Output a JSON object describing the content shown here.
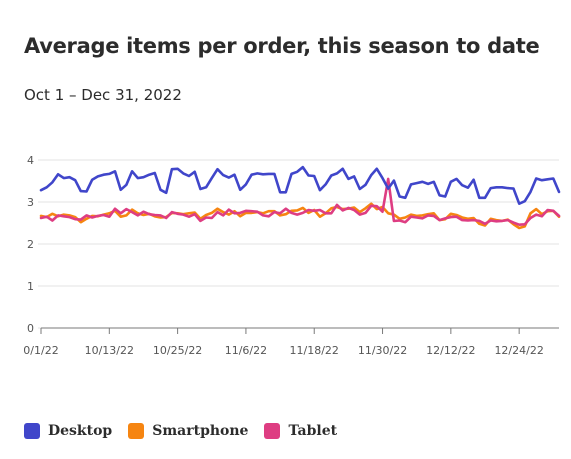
{
  "chart_data": {
    "type": "line",
    "title": "Average items per order, this season to date",
    "subtitle": "Oct 1 – Dec 31, 2022",
    "xlabel": "",
    "ylabel": "",
    "x_start": "2022-10-01",
    "x_end": "2022-12-31",
    "ylim": [
      0,
      4
    ],
    "yticks": [
      0,
      1,
      2,
      3,
      4
    ],
    "ytick_labels": [
      "0",
      "1",
      "2",
      "3",
      "4"
    ],
    "xticks": [
      "2022-10-01",
      "2022-10-13",
      "2022-10-25",
      "2022-11-06",
      "2022-11-18",
      "2022-11-30",
      "2022-12-12",
      "2022-12-24"
    ],
    "xtick_labels": [
      "0/1/22",
      "10/13/22",
      "10/25/22",
      "11/6/22",
      "11/18/22",
      "11/30/22",
      "12/12/22",
      "12/24/22"
    ],
    "grid": true,
    "legend_position": "bottom-left",
    "series": [
      {
        "name": "Desktop",
        "color": "#4046ca",
        "values": [
          3.28,
          3.35,
          3.47,
          3.66,
          3.57,
          3.59,
          3.52,
          3.26,
          3.25,
          3.53,
          3.61,
          3.65,
          3.67,
          3.73,
          3.29,
          3.41,
          3.73,
          3.57,
          3.59,
          3.65,
          3.69,
          3.29,
          3.22,
          3.78,
          3.79,
          3.68,
          3.62,
          3.72,
          3.31,
          3.35,
          3.57,
          3.78,
          3.64,
          3.58,
          3.65,
          3.29,
          3.42,
          3.65,
          3.68,
          3.66,
          3.67,
          3.67,
          3.23,
          3.23,
          3.67,
          3.72,
          3.83,
          3.63,
          3.62,
          3.28,
          3.42,
          3.63,
          3.68,
          3.79,
          3.55,
          3.61,
          3.31,
          3.41,
          3.64,
          3.79,
          3.57,
          3.32,
          3.51,
          3.13,
          3.1,
          3.42,
          3.45,
          3.48,
          3.43,
          3.48,
          3.16,
          3.13,
          3.48,
          3.55,
          3.4,
          3.34,
          3.53,
          3.1,
          3.1,
          3.33,
          3.35,
          3.35,
          3.33,
          3.32,
          2.96,
          3.02,
          3.24,
          3.56,
          3.52,
          3.54,
          3.56,
          3.24
        ]
      },
      {
        "name": "Smartphone",
        "color": "#f68511",
        "values": [
          2.67,
          2.64,
          2.72,
          2.66,
          2.7,
          2.68,
          2.64,
          2.52,
          2.6,
          2.67,
          2.66,
          2.7,
          2.73,
          2.79,
          2.65,
          2.68,
          2.82,
          2.73,
          2.69,
          2.72,
          2.66,
          2.63,
          2.64,
          2.74,
          2.73,
          2.71,
          2.73,
          2.75,
          2.6,
          2.69,
          2.74,
          2.84,
          2.76,
          2.7,
          2.78,
          2.66,
          2.74,
          2.74,
          2.76,
          2.73,
          2.78,
          2.78,
          2.68,
          2.71,
          2.79,
          2.8,
          2.86,
          2.74,
          2.81,
          2.65,
          2.73,
          2.85,
          2.88,
          2.83,
          2.84,
          2.87,
          2.76,
          2.85,
          2.96,
          2.83,
          2.88,
          2.73,
          2.7,
          2.6,
          2.63,
          2.7,
          2.67,
          2.68,
          2.71,
          2.73,
          2.57,
          2.59,
          2.72,
          2.69,
          2.63,
          2.6,
          2.62,
          2.48,
          2.44,
          2.6,
          2.57,
          2.55,
          2.58,
          2.47,
          2.38,
          2.42,
          2.73,
          2.83,
          2.71,
          2.78,
          2.79,
          2.65
        ]
      },
      {
        "name": "Tablet",
        "color": "#de3d82",
        "values": [
          2.62,
          2.65,
          2.56,
          2.68,
          2.66,
          2.64,
          2.59,
          2.58,
          2.68,
          2.63,
          2.67,
          2.69,
          2.65,
          2.84,
          2.73,
          2.83,
          2.76,
          2.68,
          2.77,
          2.71,
          2.69,
          2.68,
          2.62,
          2.76,
          2.72,
          2.7,
          2.65,
          2.71,
          2.55,
          2.63,
          2.62,
          2.76,
          2.68,
          2.82,
          2.73,
          2.74,
          2.79,
          2.78,
          2.77,
          2.68,
          2.66,
          2.76,
          2.73,
          2.84,
          2.74,
          2.7,
          2.74,
          2.81,
          2.79,
          2.81,
          2.73,
          2.73,
          2.93,
          2.8,
          2.86,
          2.81,
          2.7,
          2.74,
          2.91,
          2.9,
          2.77,
          3.55,
          2.55,
          2.56,
          2.52,
          2.65,
          2.63,
          2.61,
          2.68,
          2.67,
          2.57,
          2.61,
          2.64,
          2.65,
          2.57,
          2.56,
          2.57,
          2.55,
          2.48,
          2.56,
          2.54,
          2.55,
          2.57,
          2.51,
          2.46,
          2.47,
          2.62,
          2.7,
          2.66,
          2.81,
          2.79,
          2.67
        ]
      }
    ]
  }
}
